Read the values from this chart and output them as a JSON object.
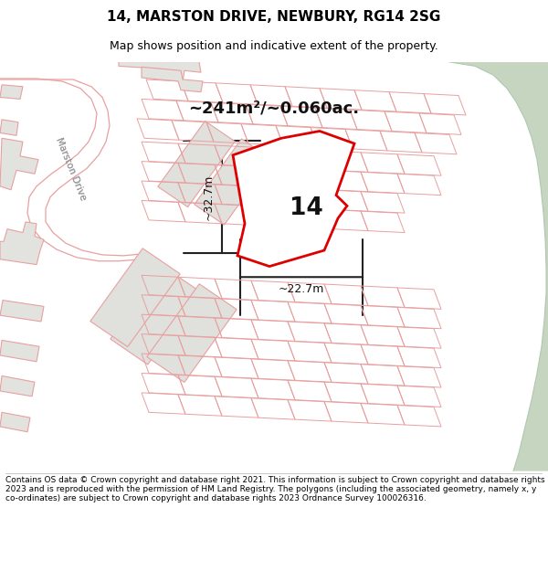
{
  "title": "14, MARSTON DRIVE, NEWBURY, RG14 2SG",
  "subtitle": "Map shows position and indicative extent of the property.",
  "area_label": "~241m²/~0.060ac.",
  "width_label": "~22.7m",
  "height_label": "~32.7m",
  "number_label": "14",
  "footer": "Contains OS data © Crown copyright and database right 2021. This information is subject to Crown copyright and database rights 2023 and is reproduced with the permission of HM Land Registry. The polygons (including the associated geometry, namely x, y co-ordinates) are subject to Crown copyright and database rights 2023 Ordnance Survey 100026316.",
  "map_bg": "#f8f8f5",
  "green_color": "#c5d5c0",
  "road_fill": "#ffffff",
  "building_fill": "#e2e2de",
  "building_edge": "#e8a0a0",
  "plot_line": "#dd0000",
  "dim_color": "#222222",
  "street_color": "#aaaaaa",
  "title_size": 11,
  "subtitle_size": 9,
  "footer_size": 6.5
}
